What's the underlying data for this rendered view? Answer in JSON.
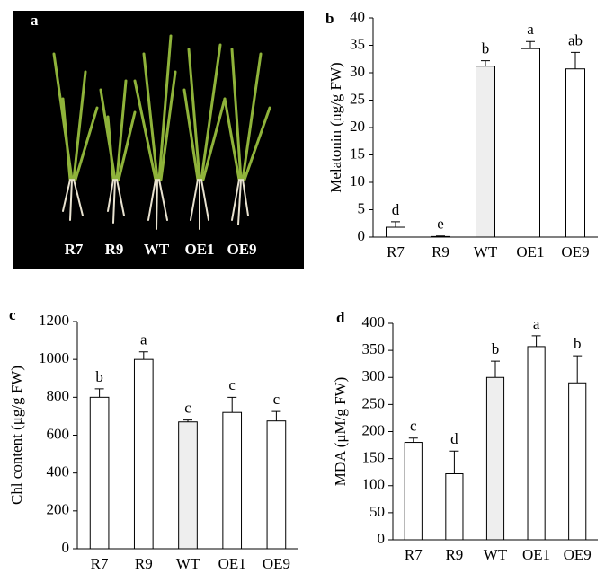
{
  "photo": {
    "panel_label": "a",
    "labels": [
      "R7",
      "R9",
      "WT",
      "OE1",
      "OE9"
    ]
  },
  "chart_data": [
    {
      "type": "bar",
      "panel_label": "b",
      "y_label": "Melatonin (ng/g FW)",
      "categories": [
        "R7",
        "R9",
        "WT",
        "OE1",
        "OE9"
      ],
      "values": [
        1.8,
        0.1,
        31.2,
        34.4,
        30.7
      ],
      "errors": [
        1.0,
        0.1,
        1.0,
        1.3,
        3.0
      ],
      "annotations": [
        "d",
        "e",
        "b",
        "a",
        "ab"
      ],
      "colors": [
        "#ffffff",
        "#ffffff",
        "#eeeeee",
        "#ffffff",
        "#ffffff"
      ],
      "ylim": [
        0,
        40
      ],
      "yticks": [
        0,
        5,
        10,
        15,
        20,
        25,
        30,
        35,
        40
      ]
    },
    {
      "type": "bar",
      "panel_label": "c",
      "y_label": "Chl content (μg/g FW)",
      "categories": [
        "R7",
        "R9",
        "WT",
        "OE1",
        "OE9"
      ],
      "values": [
        800,
        1000,
        670,
        720,
        675
      ],
      "errors": [
        45,
        40,
        10,
        80,
        50
      ],
      "annotations": [
        "b",
        "a",
        "c",
        "c",
        "c"
      ],
      "colors": [
        "#ffffff",
        "#ffffff",
        "#eeeeee",
        "#ffffff",
        "#ffffff"
      ],
      "ylim": [
        0,
        1200
      ],
      "yticks": [
        0,
        200,
        400,
        600,
        800,
        1000,
        1200
      ]
    },
    {
      "type": "bar",
      "panel_label": "d",
      "y_label": "MDA (μM/g FW)",
      "categories": [
        "R7",
        "R9",
        "WT",
        "OE1",
        "OE9"
      ],
      "values": [
        180,
        122,
        300,
        357,
        290
      ],
      "errors": [
        8,
        42,
        30,
        20,
        50
      ],
      "annotations": [
        "c",
        "d",
        "b",
        "a",
        "b"
      ],
      "colors": [
        "#ffffff",
        "#ffffff",
        "#eeeeee",
        "#ffffff",
        "#ffffff"
      ],
      "ylim": [
        0,
        400
      ],
      "yticks": [
        0,
        50,
        100,
        150,
        200,
        250,
        300,
        350,
        400
      ]
    }
  ]
}
